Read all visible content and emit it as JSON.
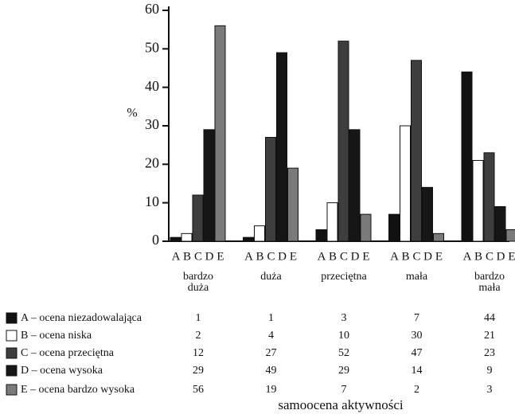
{
  "chart_data": {
    "type": "bar",
    "ylabel": "%",
    "xlabel": "samoocena aktywności",
    "categories": [
      "bardzo\nduża",
      "duża",
      "przeciętna",
      "mała",
      "bardzo\nmała"
    ],
    "series": [
      {
        "name": "A – ocena niezadowalająca",
        "short": "A",
        "color": "#111111",
        "values": [
          1,
          1,
          3,
          7,
          44
        ]
      },
      {
        "name": "B – ocena niska",
        "short": "B",
        "color": "#ffffff",
        "values": [
          2,
          4,
          10,
          30,
          21
        ]
      },
      {
        "name": "C – ocena przeciętna",
        "short": "C",
        "color": "#3e3e3e",
        "values": [
          12,
          27,
          52,
          47,
          23
        ]
      },
      {
        "name": "D – ocena wysoka",
        "short": "D",
        "color": "#161616",
        "values": [
          29,
          49,
          29,
          14,
          9
        ]
      },
      {
        "name": "E – ocena bardzo wysoka",
        "short": "E",
        "color": "#7a7a7a",
        "values": [
          56,
          19,
          7,
          2,
          3
        ]
      }
    ],
    "ylim": [
      0,
      60
    ],
    "yticks": [
      0,
      10,
      20,
      30,
      40,
      50,
      60
    ]
  }
}
